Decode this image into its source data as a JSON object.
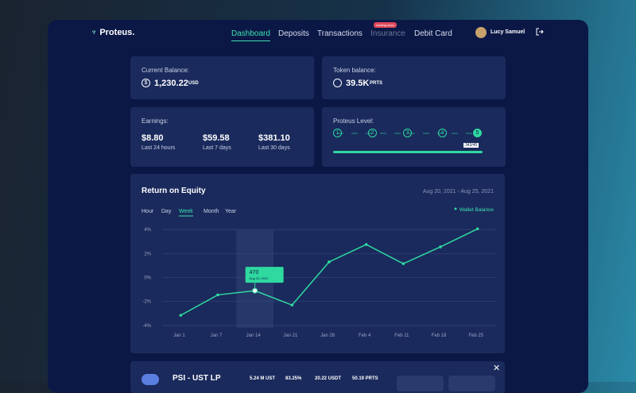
{
  "nav": {
    "brand": "Proteus.",
    "links": [
      "Dashboard",
      "Deposits",
      "Transactions",
      "Insurance",
      "Debit Card"
    ],
    "badge": "coming soon",
    "user": "Lucy Samuel"
  },
  "balance": {
    "label": "Current Balance:",
    "value": "1,230.22",
    "unit": "USD"
  },
  "token": {
    "label": "Token balance:",
    "value": "39.5K",
    "unit": "PRTS"
  },
  "earnings": {
    "label": "Earnings:",
    "items": [
      {
        "value": "$8.80",
        "period": "Last 24 hours"
      },
      {
        "value": "$59.58",
        "period": "Last 7 days"
      },
      {
        "value": "$381.10",
        "period": "Last 30 days"
      }
    ]
  },
  "level": {
    "label": "Proteus Level:",
    "steps": [
      "1",
      "2",
      "3",
      "4",
      "5"
    ],
    "progress": "343/45"
  },
  "chart_data": {
    "type": "line",
    "title": "Return on Equity",
    "subtitle": "Aug 20, 2021 - Aug 25, 2021",
    "ranges": [
      "Hour",
      "Day",
      "Week",
      "Month",
      "Year"
    ],
    "categories": [
      "Jan 1",
      "Jan 7",
      "Jan 14",
      "Jan 21",
      "Jan 28",
      "Feb 4",
      "Feb 11",
      "Feb 18",
      "Feb 25"
    ],
    "series": [
      {
        "name": "Wallet Balance",
        "color": "#2fd9a0",
        "values": [
          -3.15,
          -1.45,
          -1.1,
          -2.3,
          1.3,
          2.75,
          1.15,
          2.55,
          4.05
        ]
      }
    ],
    "ylim": [
      -4.2,
      4.2
    ],
    "yticks": [
      {
        "value": 4,
        "label": "4%"
      },
      {
        "value": 2,
        "label": "2%"
      },
      {
        "value": 0,
        "label": "0%"
      },
      {
        "value": -2,
        "label": "-2%"
      },
      {
        "value": -4,
        "label": "-4%"
      }
    ],
    "grid": true,
    "annotation": {
      "text": "470",
      "date": "Aug 23, 2021"
    }
  },
  "pool": {
    "name": "PSI - UST LP",
    "stats": [
      "5.24 M UST",
      "83.25%",
      "20.22 USDT",
      "50.19 PRTS"
    ]
  }
}
